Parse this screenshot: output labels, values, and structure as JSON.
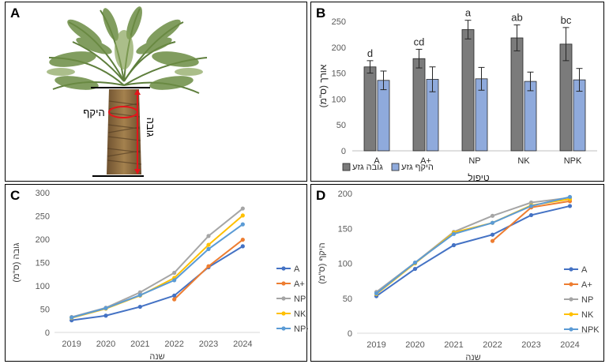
{
  "panels": {
    "a": "A",
    "b": "B",
    "c": "C",
    "d": "D"
  },
  "panel_a": {
    "circumference_label": "היקף",
    "height_label": "גובה",
    "colors": {
      "trunk": "#8a6a3e",
      "frond": "#5e7e3c",
      "marker": "#e4151b"
    }
  },
  "chart_data": [
    {
      "id": "B",
      "type": "bar",
      "categories": [
        "A",
        "A+",
        "NP",
        "NK",
        "NPK"
      ],
      "series": [
        {
          "name": "גובה גזע",
          "color": "#7b7b7b",
          "values": [
            162,
            178,
            234,
            218,
            206
          ],
          "errors": [
            12,
            18,
            18,
            25,
            32
          ],
          "letters": [
            "d",
            "cd",
            "a",
            "ab",
            "bc"
          ]
        },
        {
          "name": "היקף גזע",
          "color": "#8faadc",
          "values": [
            136,
            138,
            139,
            134,
            137
          ],
          "errors": [
            18,
            24,
            22,
            18,
            22
          ]
        }
      ],
      "ylabel": "אורך (ס\"מ)",
      "xlabel": "טיפול",
      "ylim": [
        0,
        250
      ],
      "yticks": [
        0,
        50,
        100,
        150,
        200,
        250
      ],
      "legend_position": "bottom"
    },
    {
      "id": "C",
      "type": "line",
      "x": [
        "2019",
        "2020",
        "2021",
        "2022",
        "2023",
        "2024"
      ],
      "series": [
        {
          "name": "A",
          "color": "#4472c4",
          "values": [
            26,
            36,
            55,
            79,
            140,
            185
          ]
        },
        {
          "name": "A+",
          "color": "#ed7d31",
          "values": [
            null,
            null,
            null,
            71,
            142,
            199
          ]
        },
        {
          "name": "NP",
          "color": "#a5a5a5",
          "values": [
            33,
            53,
            86,
            128,
            207,
            266
          ]
        },
        {
          "name": "NK",
          "color": "#ffc000",
          "values": [
            31,
            51,
            79,
            117,
            188,
            251
          ]
        },
        {
          "name": "NPK",
          "color": "#5b9bd5",
          "values": [
            32,
            52,
            80,
            112,
            179,
            232
          ]
        }
      ],
      "ylabel": "גובה (ס\"מ)",
      "xlabel": "שנה",
      "ylim": [
        0,
        300
      ],
      "yticks": [
        0,
        50,
        100,
        150,
        200,
        250,
        300
      ],
      "legend_position": "right"
    },
    {
      "id": "D",
      "type": "line",
      "x": [
        "2019",
        "2020",
        "2021",
        "2022",
        "2023",
        "2024"
      ],
      "series": [
        {
          "name": "A",
          "color": "#4472c4",
          "values": [
            53,
            92,
            126,
            141,
            169,
            182
          ]
        },
        {
          "name": "A+",
          "color": "#ed7d31",
          "values": [
            null,
            null,
            null,
            132,
            180,
            189
          ]
        },
        {
          "name": "NP",
          "color": "#a5a5a5",
          "values": [
            59,
            101,
            145,
            168,
            187,
            194
          ]
        },
        {
          "name": "NK",
          "color": "#ffc000",
          "values": [
            56,
            100,
            144,
            158,
            183,
            192
          ]
        },
        {
          "name": "NPK",
          "color": "#5b9bd5",
          "values": [
            57,
            101,
            142,
            158,
            182,
            195
          ]
        }
      ],
      "ylabel": "היקף (ס\"מ)",
      "xlabel": "שנה",
      "ylim": [
        0,
        200
      ],
      "yticks": [
        0,
        50,
        100,
        150,
        200
      ],
      "legend_position": "right"
    }
  ]
}
